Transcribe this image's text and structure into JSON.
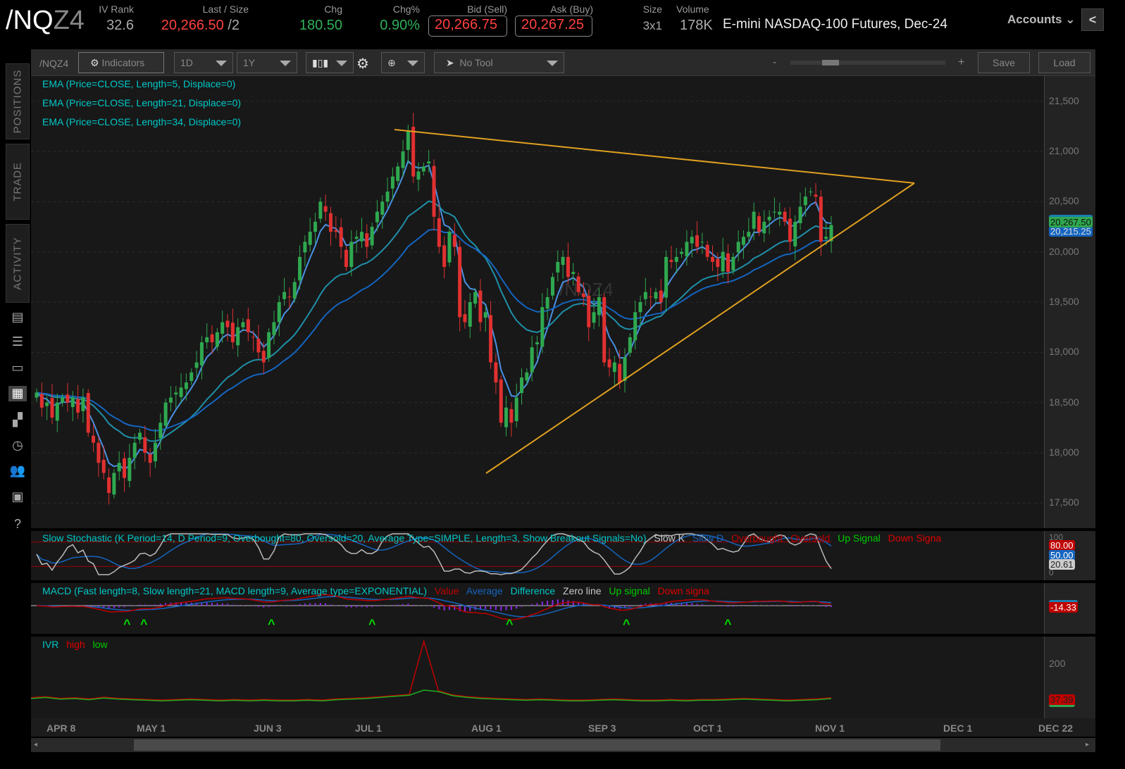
{
  "header": {
    "symbol_main": "/NQ",
    "symbol_suffix": "Z4",
    "iv_rank": {
      "label": "IV Rank",
      "value": "32.6"
    },
    "last": {
      "label": "Last / Size",
      "value": "20,266.50",
      "size": "/2"
    },
    "chg": {
      "label": "Chg",
      "value": "180.50"
    },
    "chg_pct": {
      "label": "Chg%",
      "value": "0.90%"
    },
    "bid": {
      "label": "Bid (Sell)",
      "value": "20,266.75"
    },
    "ask": {
      "label": "Ask (Buy)",
      "value": "20,267.25"
    },
    "size": {
      "label": "Size",
      "value": "3x1"
    },
    "volume": {
      "label": "Volume",
      "value": "178K"
    },
    "description": "E-mini NASDAQ-100 Futures, Dec-24",
    "accounts": "Accounts",
    "collapse": "<"
  },
  "colors": {
    "up": "#2fa84f",
    "down": "#e03030",
    "ema5": "#4a90e2",
    "ema21": "#1f8fa8",
    "ema34": "#1565c0",
    "trendline": "#e0a020",
    "accent": "#00c8c8"
  },
  "sidebar": {
    "tabs": [
      "POSITIONS",
      "TRADE",
      "ACTIVITY"
    ],
    "icons": [
      "chart-news-icon",
      "watchlist-icon",
      "tv-icon",
      "chart-grid-icon",
      "layout-icon",
      "clock-icon",
      "community-icon",
      "calendar-icon",
      "help-icon"
    ]
  },
  "toolbar": {
    "symbol": "/NQZ4",
    "indicators": "Indicators",
    "aggregation": "1D",
    "timeframe": "1Y",
    "tool": "No Tool",
    "zoom_minus": "-",
    "zoom_plus": "+",
    "save": "Save",
    "load": "Load",
    "zoom_level": 0.25
  },
  "studies": [
    "EMA (Price=CLOSE, Length=5, Displace=0)",
    "EMA (Price=CLOSE, Length=21, Displace=0)",
    "EMA (Price=CLOSE, Length=34, Displace=0)"
  ],
  "watermark": "/NQZ4",
  "chart_data": {
    "type": "candlestick",
    "ylim": [
      17250,
      21750
    ],
    "y_ticks": [
      "21,500",
      "21,000",
      "20,500",
      "20,000",
      "19,500",
      "19,000",
      "18,500",
      "18,000",
      "17,500"
    ],
    "y_tick_values": [
      21500,
      21000,
      20500,
      20000,
      19500,
      19000,
      18500,
      18000,
      17500
    ],
    "x_ticks": [
      "APR 8",
      "MAY 1",
      "JUN 3",
      "JUL 1",
      "AUG 1",
      "SEP 3",
      "OCT 1",
      "NOV 1",
      "DEC 1",
      "DEC 22"
    ],
    "closes": [
      18600,
      18450,
      18500,
      18350,
      18500,
      18550,
      18500,
      18550,
      18400,
      18550,
      18200,
      18100,
      17900,
      17800,
      17600,
      17800,
      17900,
      17750,
      17950,
      18100,
      18200,
      18000,
      17900,
      18100,
      18300,
      18500,
      18550,
      18600,
      18650,
      18700,
      18800,
      18900,
      19100,
      19150,
      19100,
      19200,
      19300,
      19250,
      19100,
      19250,
      19300,
      19200,
      19150,
      19000,
      18900,
      19200,
      19300,
      19500,
      19600,
      19550,
      19700,
      19950,
      20100,
      20200,
      20300,
      20500,
      20400,
      20200,
      20200,
      20050,
      19850,
      20100,
      20150,
      20200,
      20050,
      20250,
      20400,
      20500,
      20600,
      20750,
      20850,
      21000,
      21200,
      20750,
      20800,
      20850,
      20900,
      20350,
      20050,
      19850,
      20200,
      20050,
      19350,
      19300,
      19500,
      19600,
      19300,
      19400,
      18900,
      18700,
      18300,
      18450,
      18300,
      18550,
      18750,
      18800,
      19050,
      19100,
      19450,
      19550,
      19750,
      19900,
      19950,
      19750,
      19800,
      19600,
      19550,
      19250,
      19400,
      19550,
      18900,
      18850,
      18900,
      18700,
      18950,
      19150,
      19400,
      19500,
      19600,
      19550,
      19600,
      19500,
      19950,
      19900,
      19950,
      20000,
      20100,
      20150,
      20050,
      20100,
      19950,
      19900,
      19850,
      20000,
      19800,
      19950,
      20100,
      20150,
      20200,
      20400,
      20200,
      20300,
      20350,
      20400,
      20400,
      20300,
      20100,
      20300,
      20450,
      20550,
      20600,
      20550,
      20100,
      20150,
      20267.5
    ],
    "price_tags": [
      "20,267.50",
      "20,215.25"
    ]
  },
  "stochastic": {
    "title": "Slow Stochastic (K Period=14, D Period=9, Overbought=80, Oversold=20, Average Type=SIMPLE, Length=3, Show Breakout Signals=No)",
    "legend": [
      {
        "t": "Slow K",
        "c": "#c8c8c8"
      },
      {
        "t": "Slow D",
        "c": "#1565c0"
      },
      {
        "t": "Overbought",
        "c": "#c00000"
      },
      {
        "t": "Oversold",
        "c": "#c00000"
      },
      {
        "t": "Up Signal",
        "c": "#00cc00"
      },
      {
        "t": "Down Signa",
        "c": "#e00000"
      }
    ],
    "ticks": [
      "100",
      "0"
    ],
    "tags": [
      "80.00",
      "50.00",
      "20.61"
    ]
  },
  "macd": {
    "title": "MACD (Fast length=8, Slow length=21, MACD length=9, Average type=EXPONENTIAL)",
    "legend": [
      {
        "t": "Value",
        "c": "#c00000"
      },
      {
        "t": "Average",
        "c": "#1565c0"
      },
      {
        "t": "Difference",
        "c": "#00c8c8"
      },
      {
        "t": "Zero line",
        "c": "#c8c8c8"
      },
      {
        "t": "Up signal",
        "c": "#00cc00"
      },
      {
        "t": "Down signa",
        "c": "#e00000"
      }
    ],
    "tag": "-14.33"
  },
  "ivr": {
    "title": "IVR",
    "legend": [
      {
        "t": "high",
        "c": "#e00000"
      },
      {
        "t": "low",
        "c": "#00cc00"
      }
    ],
    "tick": "200",
    "tag": "37.39",
    "values": [
      30,
      34,
      28,
      30,
      26,
      32,
      28,
      26,
      24,
      22,
      24,
      26,
      24,
      22,
      24,
      22,
      24,
      22,
      22,
      24,
      22,
      26,
      28,
      30,
      34,
      38,
      42,
      60,
      55,
      40,
      34,
      30,
      28,
      26,
      24,
      26,
      24,
      22,
      22,
      24,
      26,
      24,
      22,
      22,
      24,
      22,
      24,
      24,
      26,
      28,
      26,
      24,
      22,
      24,
      26,
      30
    ],
    "spike": 230
  }
}
